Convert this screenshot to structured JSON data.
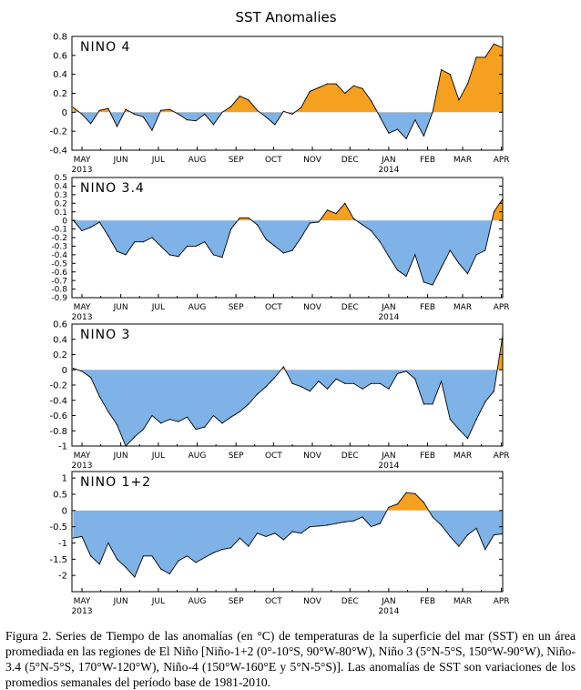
{
  "figure_title": "SST Anomalies",
  "caption": "Figura 2. Series de Tiempo de las anomalías (en °C) de temperaturas de la superficie del mar (SST) en un área promediada en las regiones de El Niño [Niño-1+2 (0°-10°S, 90°W-80°W), Niño 3 (5°N-5°S, 150°W-90°W), Niño-3.4 (5°N-5°S, 170°W-120°W), Niño-4 (150°W-160°E y 5°N-5°S)]. Las anomalías de SST son variaciones de los promedios semanales del período base de 1981-2010.",
  "colors": {
    "positive": "#f5a020",
    "negative": "#7fb2e6",
    "line": "#000000"
  },
  "chart_data": [
    {
      "type": "area",
      "title": "NINO 4",
      "months": [
        "MAY",
        "JUN",
        "JUL",
        "AUG",
        "SEP",
        "OCT",
        "NOV",
        "DEC",
        "JAN",
        "FEB",
        "MAR",
        "APR"
      ],
      "year_labels": [
        {
          "month": "MAY",
          "text": "2013"
        },
        {
          "month": "JAN",
          "text": "2014"
        }
      ],
      "xlim": [
        "2013-04-23",
        "2014-04-02"
      ],
      "ylim": [
        -0.4,
        0.8
      ],
      "yticks": [
        "-0.4",
        "-0.2",
        "0",
        "0.2",
        "0.4",
        "0.6",
        "0.8"
      ],
      "x": [
        "2013-04-24",
        "2013-05-01",
        "2013-05-08",
        "2013-05-15",
        "2013-05-22",
        "2013-05-29",
        "2013-06-05",
        "2013-06-12",
        "2013-06-19",
        "2013-06-26",
        "2013-07-03",
        "2013-07-10",
        "2013-07-17",
        "2013-07-24",
        "2013-07-31",
        "2013-08-07",
        "2013-08-14",
        "2013-08-21",
        "2013-08-28",
        "2013-09-04",
        "2013-09-11",
        "2013-09-18",
        "2013-09-25",
        "2013-10-02",
        "2013-10-09",
        "2013-10-16",
        "2013-10-23",
        "2013-10-30",
        "2013-11-06",
        "2013-11-13",
        "2013-11-20",
        "2013-11-27",
        "2013-12-04",
        "2013-12-11",
        "2013-12-18",
        "2013-12-25",
        "2014-01-01",
        "2014-01-08",
        "2014-01-15",
        "2014-01-22",
        "2014-01-29",
        "2014-02-05",
        "2014-02-12",
        "2014-02-19",
        "2014-02-26",
        "2014-03-05",
        "2014-03-12",
        "2014-03-19",
        "2014-03-26",
        "2014-04-02"
      ],
      "values": [
        0.05,
        -0.02,
        -0.12,
        0.02,
        0.04,
        -0.15,
        0.03,
        -0.02,
        -0.05,
        -0.19,
        0.02,
        0.03,
        -0.02,
        -0.08,
        -0.09,
        -0.02,
        -0.13,
        0.0,
        0.06,
        0.17,
        0.13,
        0.02,
        -0.05,
        -0.13,
        0.01,
        -0.02,
        0.05,
        0.22,
        0.26,
        0.3,
        0.3,
        0.2,
        0.28,
        0.25,
        0.12,
        -0.05,
        -0.22,
        -0.18,
        -0.28,
        -0.08,
        -0.25,
        0.0,
        0.45,
        0.4,
        0.13,
        0.3,
        0.58,
        0.58,
        0.72,
        0.68
      ]
    },
    {
      "type": "area",
      "title": "NINO 3.4",
      "months": [
        "MAY",
        "JUN",
        "JUL",
        "AUG",
        "SEP",
        "OCT",
        "NOV",
        "DEC",
        "JAN",
        "FEB",
        "MAR",
        "APR"
      ],
      "year_labels": [
        {
          "month": "MAY",
          "text": "2013"
        },
        {
          "month": "JAN",
          "text": "2014"
        }
      ],
      "xlim": [
        "2013-04-23",
        "2014-04-02"
      ],
      "ylim": [
        -0.9,
        0.5
      ],
      "yticks": [
        "-0.9",
        "-0.8",
        "-0.7",
        "-0.6",
        "-0.5",
        "-0.4",
        "-0.3",
        "-0.2",
        "-0.1",
        "0",
        "0.1",
        "0.2",
        "0.3",
        "0.4",
        "0.5"
      ],
      "x": [
        "2013-04-24",
        "2013-05-01",
        "2013-05-08",
        "2013-05-15",
        "2013-05-22",
        "2013-05-29",
        "2013-06-05",
        "2013-06-12",
        "2013-06-19",
        "2013-06-26",
        "2013-07-03",
        "2013-07-10",
        "2013-07-17",
        "2013-07-24",
        "2013-07-31",
        "2013-08-07",
        "2013-08-14",
        "2013-08-21",
        "2013-08-28",
        "2013-09-04",
        "2013-09-11",
        "2013-09-18",
        "2013-09-25",
        "2013-10-02",
        "2013-10-09",
        "2013-10-16",
        "2013-10-23",
        "2013-10-30",
        "2013-11-06",
        "2013-11-13",
        "2013-11-20",
        "2013-11-27",
        "2013-12-04",
        "2013-12-11",
        "2013-12-18",
        "2013-12-25",
        "2014-01-01",
        "2014-01-08",
        "2014-01-15",
        "2014-01-22",
        "2014-01-29",
        "2014-02-05",
        "2014-02-12",
        "2014-02-19",
        "2014-02-26",
        "2014-03-05",
        "2014-03-12",
        "2014-03-19",
        "2014-03-26",
        "2014-04-02"
      ],
      "values": [
        0.0,
        -0.12,
        -0.08,
        -0.02,
        -0.18,
        -0.36,
        -0.4,
        -0.25,
        -0.25,
        -0.2,
        -0.3,
        -0.4,
        -0.42,
        -0.3,
        -0.3,
        -0.25,
        -0.4,
        -0.43,
        -0.1,
        0.03,
        0.03,
        -0.05,
        -0.22,
        -0.3,
        -0.38,
        -0.35,
        -0.2,
        -0.03,
        -0.02,
        0.12,
        0.08,
        0.2,
        0.02,
        -0.05,
        -0.12,
        -0.25,
        -0.42,
        -0.58,
        -0.65,
        -0.4,
        -0.72,
        -0.75,
        -0.55,
        -0.35,
        -0.5,
        -0.62,
        -0.4,
        -0.35,
        0.1,
        0.25
      ]
    },
    {
      "type": "area",
      "title": "NINO 3",
      "months": [
        "MAY",
        "JUN",
        "JUL",
        "AUG",
        "SEP",
        "OCT",
        "NOV",
        "DEC",
        "JAN",
        "FEB",
        "MAR",
        "APR"
      ],
      "year_labels": [
        {
          "month": "MAY",
          "text": "2013"
        },
        {
          "month": "JAN",
          "text": "2014"
        }
      ],
      "xlim": [
        "2013-04-23",
        "2014-04-02"
      ],
      "ylim": [
        -1.0,
        0.6
      ],
      "yticks": [
        "-1",
        "-0.8",
        "-0.6",
        "-0.4",
        "-0.2",
        "0",
        "0.2",
        "0.4",
        "0.6"
      ],
      "x": [
        "2013-04-24",
        "2013-05-01",
        "2013-05-08",
        "2013-05-15",
        "2013-05-22",
        "2013-05-29",
        "2013-06-05",
        "2013-06-12",
        "2013-06-19",
        "2013-06-26",
        "2013-07-03",
        "2013-07-10",
        "2013-07-17",
        "2013-07-24",
        "2013-07-31",
        "2013-08-07",
        "2013-08-14",
        "2013-08-21",
        "2013-08-28",
        "2013-09-04",
        "2013-09-11",
        "2013-09-18",
        "2013-09-25",
        "2013-10-02",
        "2013-10-09",
        "2013-10-16",
        "2013-10-23",
        "2013-10-30",
        "2013-11-06",
        "2013-11-13",
        "2013-11-20",
        "2013-11-27",
        "2013-12-04",
        "2013-12-11",
        "2013-12-18",
        "2013-12-25",
        "2014-01-01",
        "2014-01-08",
        "2014-01-15",
        "2014-01-22",
        "2014-01-29",
        "2014-02-05",
        "2014-02-12",
        "2014-02-19",
        "2014-02-26",
        "2014-03-05",
        "2014-03-12",
        "2014-03-19",
        "2014-03-26",
        "2014-04-02"
      ],
      "values": [
        0.02,
        -0.02,
        -0.1,
        -0.35,
        -0.55,
        -0.72,
        -1.0,
        -0.88,
        -0.78,
        -0.6,
        -0.7,
        -0.65,
        -0.68,
        -0.62,
        -0.78,
        -0.75,
        -0.6,
        -0.7,
        -0.62,
        -0.55,
        -0.45,
        -0.32,
        -0.22,
        -0.1,
        0.04,
        -0.18,
        -0.22,
        -0.28,
        -0.15,
        -0.25,
        -0.12,
        -0.18,
        -0.18,
        -0.25,
        -0.18,
        -0.18,
        -0.25,
        -0.05,
        -0.02,
        -0.12,
        -0.45,
        -0.45,
        -0.15,
        -0.65,
        -0.78,
        -0.9,
        -0.65,
        -0.42,
        -0.28,
        0.45
      ]
    },
    {
      "type": "area",
      "title": "NINO 1+2",
      "months": [
        "MAY",
        "JUN",
        "JUL",
        "AUG",
        "SEP",
        "OCT",
        "NOV",
        "DEC",
        "JAN",
        "FEB",
        "MAR",
        "APR"
      ],
      "year_labels": [
        {
          "month": "MAY",
          "text": "2013"
        },
        {
          "month": "JAN",
          "text": "2014"
        }
      ],
      "xlim": [
        "2013-04-23",
        "2014-04-02"
      ],
      "ylim": [
        -2.5,
        1.2
      ],
      "yticks": [
        "-2",
        "-1.5",
        "-1",
        "-0.5",
        "0",
        "0.5",
        "1"
      ],
      "x": [
        "2013-04-24",
        "2013-05-01",
        "2013-05-08",
        "2013-05-15",
        "2013-05-22",
        "2013-05-29",
        "2013-06-05",
        "2013-06-12",
        "2013-06-19",
        "2013-06-26",
        "2013-07-03",
        "2013-07-10",
        "2013-07-17",
        "2013-07-24",
        "2013-07-31",
        "2013-08-07",
        "2013-08-14",
        "2013-08-21",
        "2013-08-28",
        "2013-09-04",
        "2013-09-11",
        "2013-09-18",
        "2013-09-25",
        "2013-10-02",
        "2013-10-09",
        "2013-10-16",
        "2013-10-23",
        "2013-10-30",
        "2013-11-06",
        "2013-11-13",
        "2013-11-20",
        "2013-11-27",
        "2013-12-04",
        "2013-12-11",
        "2013-12-18",
        "2013-12-25",
        "2014-01-01",
        "2014-01-08",
        "2014-01-15",
        "2014-01-22",
        "2014-01-29",
        "2014-02-05",
        "2014-02-12",
        "2014-02-19",
        "2014-02-26",
        "2014-03-05",
        "2014-03-12",
        "2014-03-19",
        "2014-03-26",
        "2014-04-02"
      ],
      "values": [
        -0.85,
        -0.8,
        -1.4,
        -1.65,
        -1.0,
        -1.5,
        -1.75,
        -2.05,
        -1.4,
        -1.4,
        -1.8,
        -1.95,
        -1.55,
        -1.4,
        -1.6,
        -1.45,
        -1.3,
        -1.2,
        -1.15,
        -0.85,
        -1.1,
        -0.7,
        -0.8,
        -0.7,
        -0.9,
        -0.65,
        -0.7,
        -0.5,
        -0.48,
        -0.45,
        -0.4,
        -0.35,
        -0.32,
        -0.2,
        -0.5,
        -0.4,
        0.1,
        0.2,
        0.55,
        0.52,
        0.25,
        -0.2,
        -0.45,
        -0.8,
        -1.1,
        -0.75,
        -0.55,
        -1.2,
        -0.75,
        -0.72
      ]
    }
  ]
}
